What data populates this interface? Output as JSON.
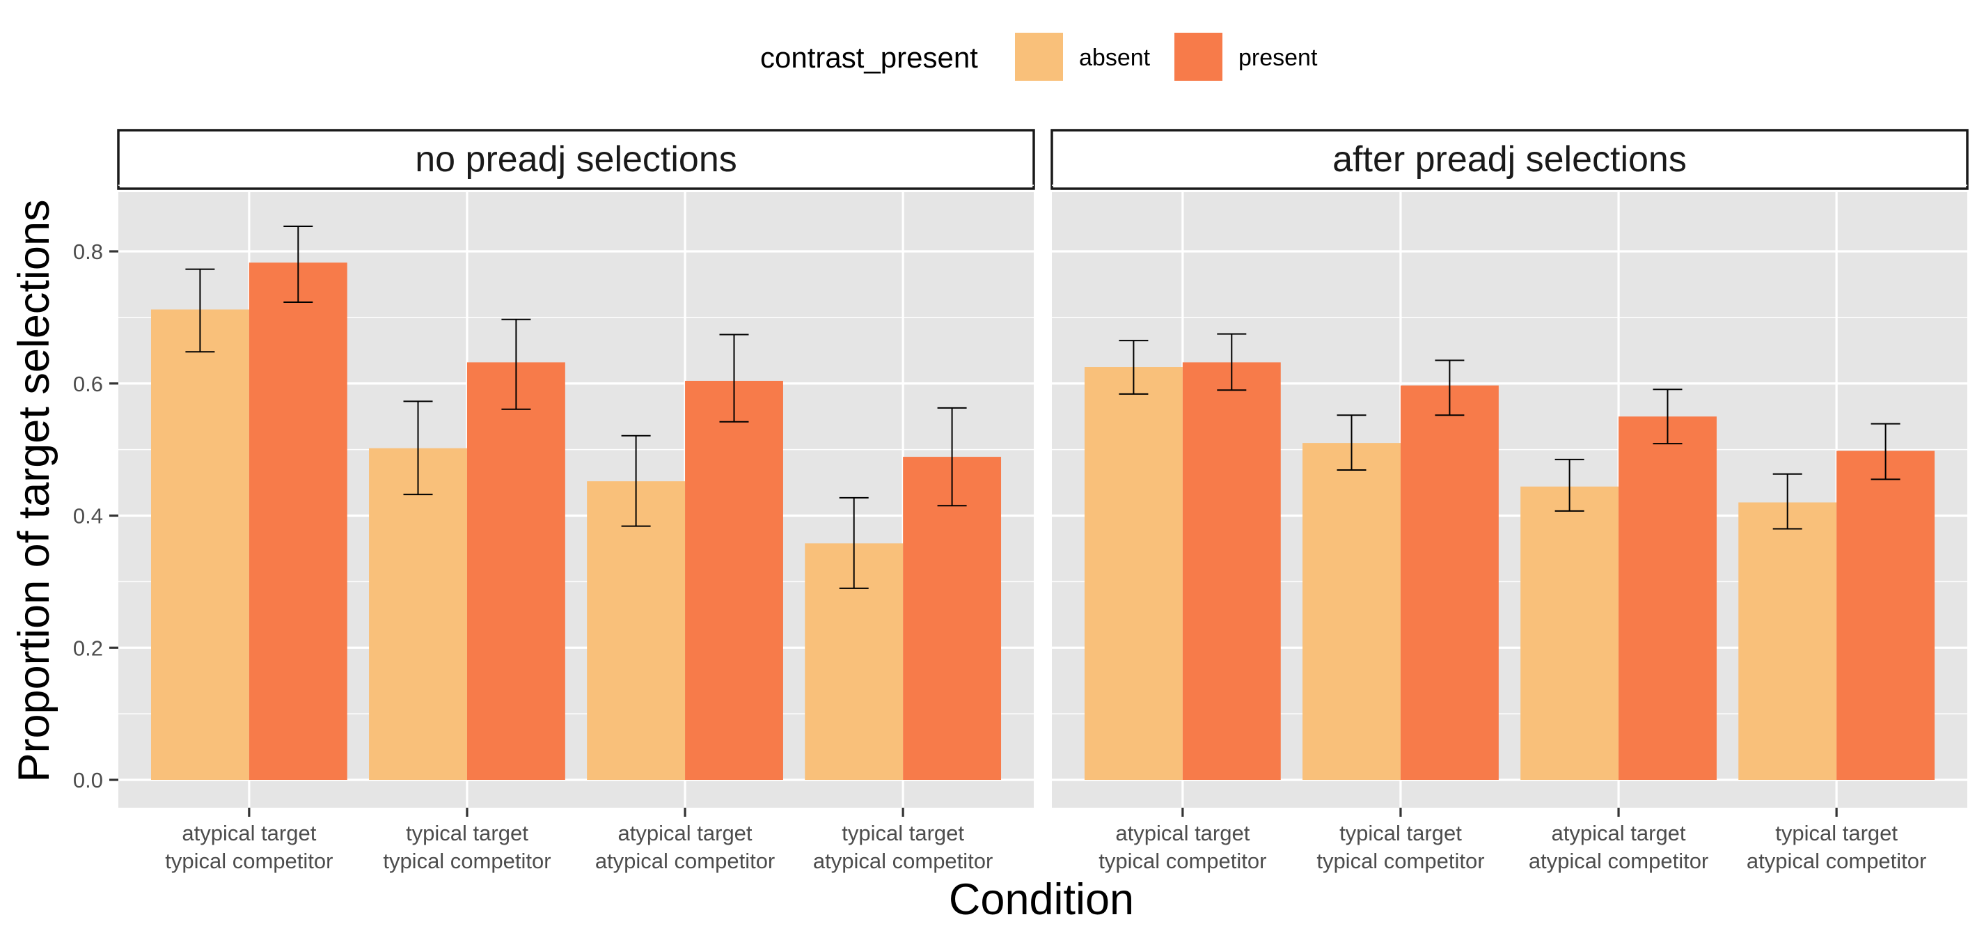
{
  "colors": {
    "absent": "#F9C07A",
    "present": "#F77B4A",
    "panel_bg": "#E5E5E5",
    "grid": "#FFFFFF",
    "errorbar": "#000000"
  },
  "legend": {
    "title": "contrast_present",
    "items": [
      {
        "key": "absent",
        "label": "absent"
      },
      {
        "key": "present",
        "label": "present"
      }
    ],
    "position": "top"
  },
  "chart_data": {
    "type": "bar",
    "title": "",
    "xlabel": "Condition",
    "ylabel": "Proportion of target selections",
    "ylim": [
      0,
      0.9
    ],
    "yticks": [
      0.0,
      0.2,
      0.4,
      0.6,
      0.8
    ],
    "ytick_labels": [
      "0.0",
      "0.2",
      "0.4",
      "0.6",
      "0.8"
    ],
    "grid": true,
    "categories": [
      [
        "atypical target",
        "typical competitor"
      ],
      [
        "typical target",
        "typical competitor"
      ],
      [
        "atypical target",
        "atypical competitor"
      ],
      [
        "typical target",
        "atypical competitor"
      ]
    ],
    "facets": [
      {
        "label": "no preadj selections",
        "series": [
          {
            "name": "absent",
            "values": [
              0.712,
              0.502,
              0.452,
              0.358
            ],
            "ci_low": [
              0.648,
              0.432,
              0.384,
              0.29
            ],
            "ci_high": [
              0.773,
              0.573,
              0.521,
              0.427
            ]
          },
          {
            "name": "present",
            "values": [
              0.783,
              0.632,
              0.604,
              0.489
            ],
            "ci_low": [
              0.723,
              0.561,
              0.542,
              0.415
            ],
            "ci_high": [
              0.838,
              0.697,
              0.674,
              0.563
            ]
          }
        ]
      },
      {
        "label": "after preadj selections",
        "series": [
          {
            "name": "absent",
            "values": [
              0.625,
              0.51,
              0.444,
              0.42
            ],
            "ci_low": [
              0.584,
              0.469,
              0.407,
              0.38
            ],
            "ci_high": [
              0.665,
              0.552,
              0.485,
              0.463
            ]
          },
          {
            "name": "present",
            "values": [
              0.632,
              0.597,
              0.55,
              0.498
            ],
            "ci_low": [
              0.59,
              0.552,
              0.509,
              0.455
            ],
            "ci_high": [
              0.675,
              0.635,
              0.591,
              0.539
            ]
          }
        ]
      }
    ]
  }
}
